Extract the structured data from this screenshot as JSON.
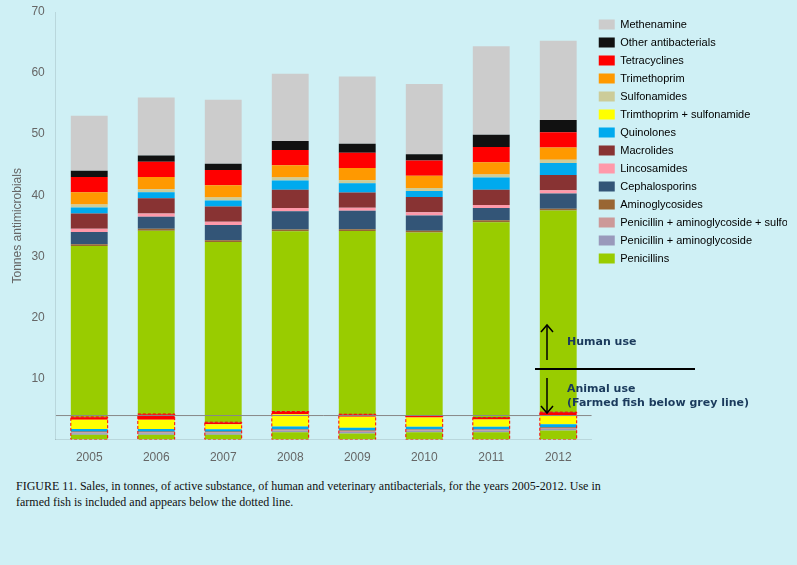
{
  "chart_data": {
    "type": "bar",
    "stacked": true,
    "categories": [
      "2005",
      "2006",
      "2007",
      "2008",
      "2009",
      "2010",
      "2011",
      "2012"
    ],
    "ylabel": "Tonnes antimicrobials",
    "ylim": [
      0,
      70
    ],
    "yticks": [
      10,
      20,
      30,
      40,
      50,
      60,
      70
    ],
    "grid": false,
    "legend": "right",
    "background_color": "#cff0f5",
    "series": [
      {
        "name": "Penicillins",
        "color": "#99cc00",
        "animal_values": [
          0.8,
          0.8,
          0.8,
          1.2,
          1.0,
          1.2,
          1.2,
          1.5
        ],
        "human_values": [
          28.0,
          30.0,
          29.5,
          29.5,
          30.0,
          30.0,
          32.0,
          33.0
        ]
      },
      {
        "name": "Penicillin + aminoglycoside",
        "color": "#9999bb",
        "animal_values": [
          0.25,
          0.25,
          0.25,
          0.25,
          0.25,
          0.25,
          0.25,
          0.25
        ],
        "human_values": [
          0.0,
          0.0,
          0.0,
          0.0,
          0.0,
          0.0,
          0.0,
          0.0
        ]
      },
      {
        "name": "Penicillin + aminoglycoside + sulfonamide",
        "color": "#cc9999",
        "animal_values": [
          0.15,
          0.15,
          0.15,
          0.15,
          0.15,
          0.15,
          0.15,
          0.15
        ],
        "human_values": [
          0.0,
          0.0,
          0.0,
          0.0,
          0.0,
          0.0,
          0.0,
          0.0
        ]
      },
      {
        "name": "Aminoglycosides",
        "color": "#996633",
        "animal_values": [
          0.1,
          0.1,
          0.1,
          0.1,
          0.1,
          0.1,
          0.1,
          0.1
        ],
        "human_values": [
          0.3,
          0.3,
          0.3,
          0.3,
          0.3,
          0.3,
          0.3,
          0.3
        ]
      },
      {
        "name": "Cephalosporins",
        "color": "#335577",
        "animal_values": [
          0.05,
          0.05,
          0.05,
          0.05,
          0.05,
          0.05,
          0.05,
          0.05
        ],
        "human_values": [
          2.0,
          2.0,
          2.5,
          3.0,
          3.0,
          2.5,
          2.0,
          2.5
        ]
      },
      {
        "name": "Lincosamides",
        "color": "#ff99aa",
        "animal_values": [
          0.0,
          0.0,
          0.0,
          0.0,
          0.0,
          0.0,
          0.0,
          0.0
        ],
        "human_values": [
          0.5,
          0.5,
          0.5,
          0.5,
          0.5,
          0.5,
          0.5,
          0.5
        ]
      },
      {
        "name": "Macrolides",
        "color": "#883333",
        "animal_values": [
          0.0,
          0.0,
          0.0,
          0.0,
          0.0,
          0.0,
          0.0,
          0.0
        ],
        "human_values": [
          2.5,
          2.5,
          2.5,
          3.0,
          2.5,
          2.5,
          2.5,
          2.5
        ]
      },
      {
        "name": "Quinolones",
        "color": "#00aaee",
        "animal_values": [
          0.4,
          0.4,
          0.35,
          0.4,
          0.4,
          0.35,
          0.35,
          0.45
        ],
        "human_values": [
          1.0,
          1.0,
          1.0,
          1.5,
          1.5,
          1.0,
          2.0,
          2.0
        ]
      },
      {
        "name": "Trimthoprim + sulfonamide",
        "color": "#ffff00",
        "animal_values": [
          1.5,
          1.5,
          0.8,
          2.0,
          1.8,
          1.5,
          1.2,
          1.5
        ],
        "human_values": [
          0.0,
          0.0,
          0.0,
          0.0,
          0.0,
          0.0,
          0.0,
          0.0
        ]
      },
      {
        "name": "Sulfonamides",
        "color": "#cccc99",
        "animal_values": [
          0.0,
          0.0,
          0.0,
          0.0,
          0.0,
          0.0,
          0.0,
          0.0
        ],
        "human_values": [
          0.5,
          0.5,
          0.5,
          0.5,
          0.5,
          0.5,
          0.5,
          0.5
        ]
      },
      {
        "name": "Trimethoprim",
        "color": "#ff9900",
        "animal_values": [
          0.0,
          0.0,
          0.0,
          0.0,
          0.0,
          0.0,
          0.0,
          0.0
        ],
        "human_values": [
          2.0,
          2.0,
          2.0,
          2.0,
          2.0,
          2.0,
          2.0,
          2.0
        ]
      },
      {
        "name": "Tetracyclines",
        "color": "#ff0000",
        "animal_values": [
          0.4,
          0.9,
          0.3,
          0.4,
          0.35,
          0.25,
          0.25,
          0.45
        ],
        "human_values": [
          2.5,
          2.5,
          2.5,
          2.5,
          2.5,
          2.5,
          2.5,
          2.5
        ]
      },
      {
        "name": "Other antibacterials",
        "color": "#111111",
        "animal_values": [
          0.05,
          0.05,
          0.05,
          0.05,
          0.05,
          0.05,
          0.05,
          0.05
        ],
        "human_values": [
          1.0,
          1.0,
          1.0,
          1.5,
          1.5,
          1.0,
          2.0,
          2.0
        ]
      },
      {
        "name": "Methenamine",
        "color": "#cccccc",
        "animal_values": [
          0.0,
          0.0,
          0.0,
          0.0,
          0.0,
          0.0,
          0.0,
          0.0
        ],
        "human_values": [
          9.0,
          9.5,
          10.5,
          11.0,
          11.0,
          11.5,
          14.5,
          13.0
        ]
      }
    ],
    "reference_line": {
      "value": 3.9375,
      "color": "#888888"
    },
    "animal_outline": {
      "color": "red",
      "line_style": "dotted"
    },
    "annotations": [
      "Human use",
      "Animal use\n(Farmed fish below grey line)"
    ],
    "caption": "FIGURE 11. Sales, in tonnes, of active substance, of human and veterinary antibacterials, for the years 2005-2012. Use in\nfarmed fish is included and appears below the dotted line."
  }
}
